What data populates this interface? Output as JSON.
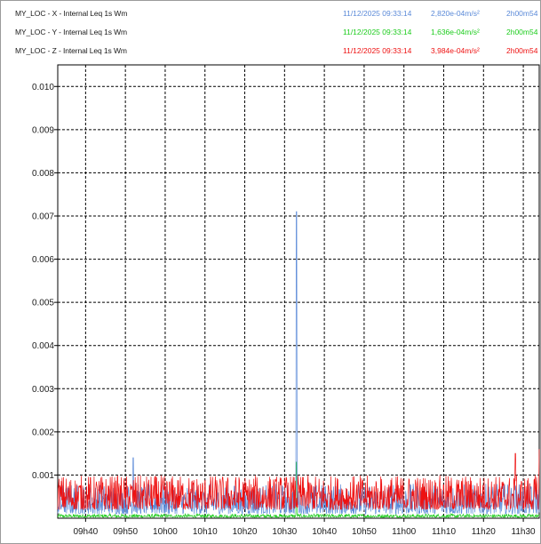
{
  "legend": [
    {
      "name": "MY_LOC - X - Internal   Leq 1s  Wm",
      "timestamp": "11/12/2025 09:33:14",
      "value": "2,820e-04m/s²",
      "duration": "2h00m54",
      "color": "#5b8ad8"
    },
    {
      "name": "MY_LOC - Y - Internal   Leq 1s  Wm",
      "timestamp": "11/12/2025 09:33:14",
      "value": "1,636e-04m/s²",
      "duration": "2h00m54",
      "color": "#1ccc1c"
    },
    {
      "name": "MY_LOC - Z - Internal   Leq 1s  Wm",
      "timestamp": "11/12/2025 09:33:14",
      "value": "3,984e-04m/s²",
      "duration": "2h00m54",
      "color": "#ee1111"
    }
  ],
  "chart_data": {
    "type": "line",
    "ylim": [
      0,
      0.0105
    ],
    "yticks": [
      "0.010",
      "0.009",
      "0.008",
      "0.007",
      "0.006",
      "0.005",
      "0.004",
      "0.003",
      "0.002",
      "0.001"
    ],
    "ytick_values": [
      0.01,
      0.009,
      0.008,
      0.007,
      0.006,
      0.005,
      0.004,
      0.003,
      0.002,
      0.001
    ],
    "xticks": [
      "09h40",
      "09h50",
      "10h00",
      "10h10",
      "10h20",
      "10h30",
      "10h40",
      "10h50",
      "11h00",
      "11h10",
      "11h20",
      "11h30"
    ],
    "x_start": "09h33",
    "x_end": "11h34",
    "grid": true,
    "series": [
      {
        "name": "MY_LOC - X - Internal   Leq 1s  Wm",
        "color": "#5b8ad8",
        "baseline_range": [
          0.0001,
          0.0008
        ],
        "peaks": [
          {
            "x": "10h33",
            "y": 0.0071
          },
          {
            "x": "09h52",
            "y": 0.0014
          }
        ]
      },
      {
        "name": "MY_LOC - Y - Internal   Leq 1s  Wm",
        "color": "#1ccc1c",
        "baseline_range": [
          2e-05,
          0.0001
        ],
        "peaks": [
          {
            "x": "10h33",
            "y": 0.0013
          }
        ]
      },
      {
        "name": "MY_LOC - Z - Internal   Leq 1s  Wm",
        "color": "#ee1111",
        "baseline_range": [
          0.0002,
          0.001
        ],
        "peaks": [
          {
            "x": "11h34",
            "y": 0.0016
          },
          {
            "x": "11h28",
            "y": 0.0015
          }
        ]
      }
    ]
  }
}
